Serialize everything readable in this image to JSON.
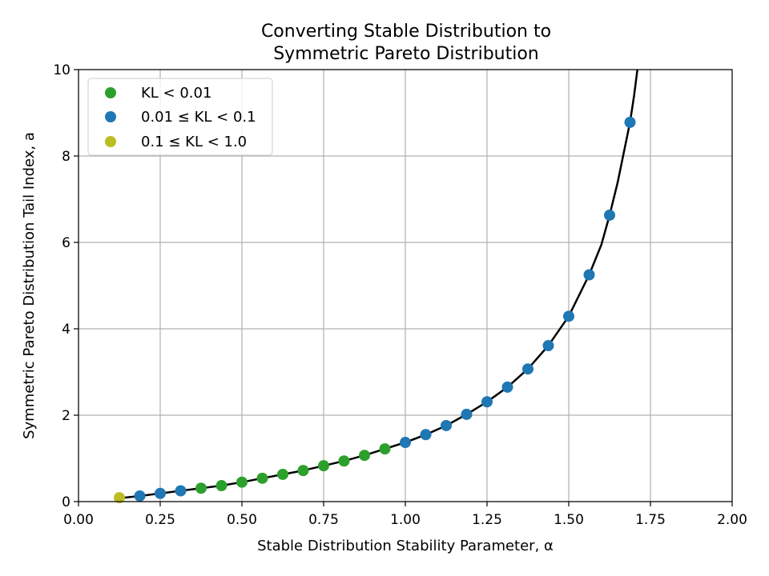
{
  "chart_data": {
    "type": "scatter",
    "title_lines": [
      "Converting Stable Distribution to",
      "Symmetric Pareto Distribution"
    ],
    "xlabel": "Stable Distribution Stability Parameter, α",
    "ylabel": "Symmetric Pareto Distribution Tail Index, a",
    "xlim": [
      0.0,
      2.0
    ],
    "ylim": [
      0,
      10
    ],
    "xticks": [
      "0.00",
      "0.25",
      "0.50",
      "0.75",
      "1.00",
      "1.25",
      "1.50",
      "1.75",
      "2.00"
    ],
    "yticks": [
      "0",
      "2",
      "4",
      "6",
      "8",
      "10"
    ],
    "grid": true,
    "legend_position": "top-left",
    "legend": [
      {
        "label": "KL < 0.01",
        "color": "#2ca02c"
      },
      {
        "label": "0.01 ≤ KL < 0.1",
        "color": "#1f77b4"
      },
      {
        "label": "0.1 ≤ KL < 1.0",
        "color": "#bcbd22"
      }
    ],
    "series": [
      {
        "label": "KL < 0.01",
        "color": "#2ca02c",
        "x": [
          0.375,
          0.4375,
          0.5,
          0.5625,
          0.625,
          0.6875,
          0.75,
          0.8125,
          0.875,
          0.9375
        ],
        "y": [
          0.31,
          0.37,
          0.45,
          0.54,
          0.63,
          0.72,
          0.83,
          0.94,
          1.07,
          1.22
        ]
      },
      {
        "label": "0.01 ≤ KL < 0.1",
        "color": "#1f77b4",
        "x": [
          0.1875,
          0.25,
          0.3125,
          1.0,
          1.0625,
          1.125,
          1.1875,
          1.25,
          1.3125,
          1.375,
          1.4375,
          1.5,
          1.5625,
          1.625,
          1.6875
        ],
        "y": [
          0.13,
          0.19,
          0.25,
          1.37,
          1.55,
          1.76,
          2.02,
          2.31,
          2.65,
          3.07,
          3.61,
          4.29,
          5.25,
          6.63,
          8.78
        ]
      },
      {
        "label": "0.1 ≤ KL < 1.0",
        "color": "#bcbd22",
        "x": [
          0.125
        ],
        "y": [
          0.09
        ]
      }
    ],
    "curve": {
      "color": "#000000",
      "x": [
        0.125,
        0.1875,
        0.25,
        0.3125,
        0.375,
        0.4375,
        0.5,
        0.5625,
        0.625,
        0.6875,
        0.75,
        0.8125,
        0.875,
        0.9375,
        1.0,
        1.0625,
        1.125,
        1.1875,
        1.25,
        1.3125,
        1.375,
        1.4375,
        1.5,
        1.5625,
        1.6,
        1.625,
        1.65,
        1.6875,
        1.7,
        1.71
      ],
      "y": [
        0.08,
        0.13,
        0.19,
        0.25,
        0.31,
        0.37,
        0.45,
        0.54,
        0.63,
        0.72,
        0.83,
        0.94,
        1.07,
        1.22,
        1.37,
        1.55,
        1.76,
        2.02,
        2.31,
        2.65,
        3.07,
        3.61,
        4.29,
        5.25,
        5.95,
        6.63,
        7.4,
        8.78,
        9.4,
        10.0
      ]
    }
  }
}
